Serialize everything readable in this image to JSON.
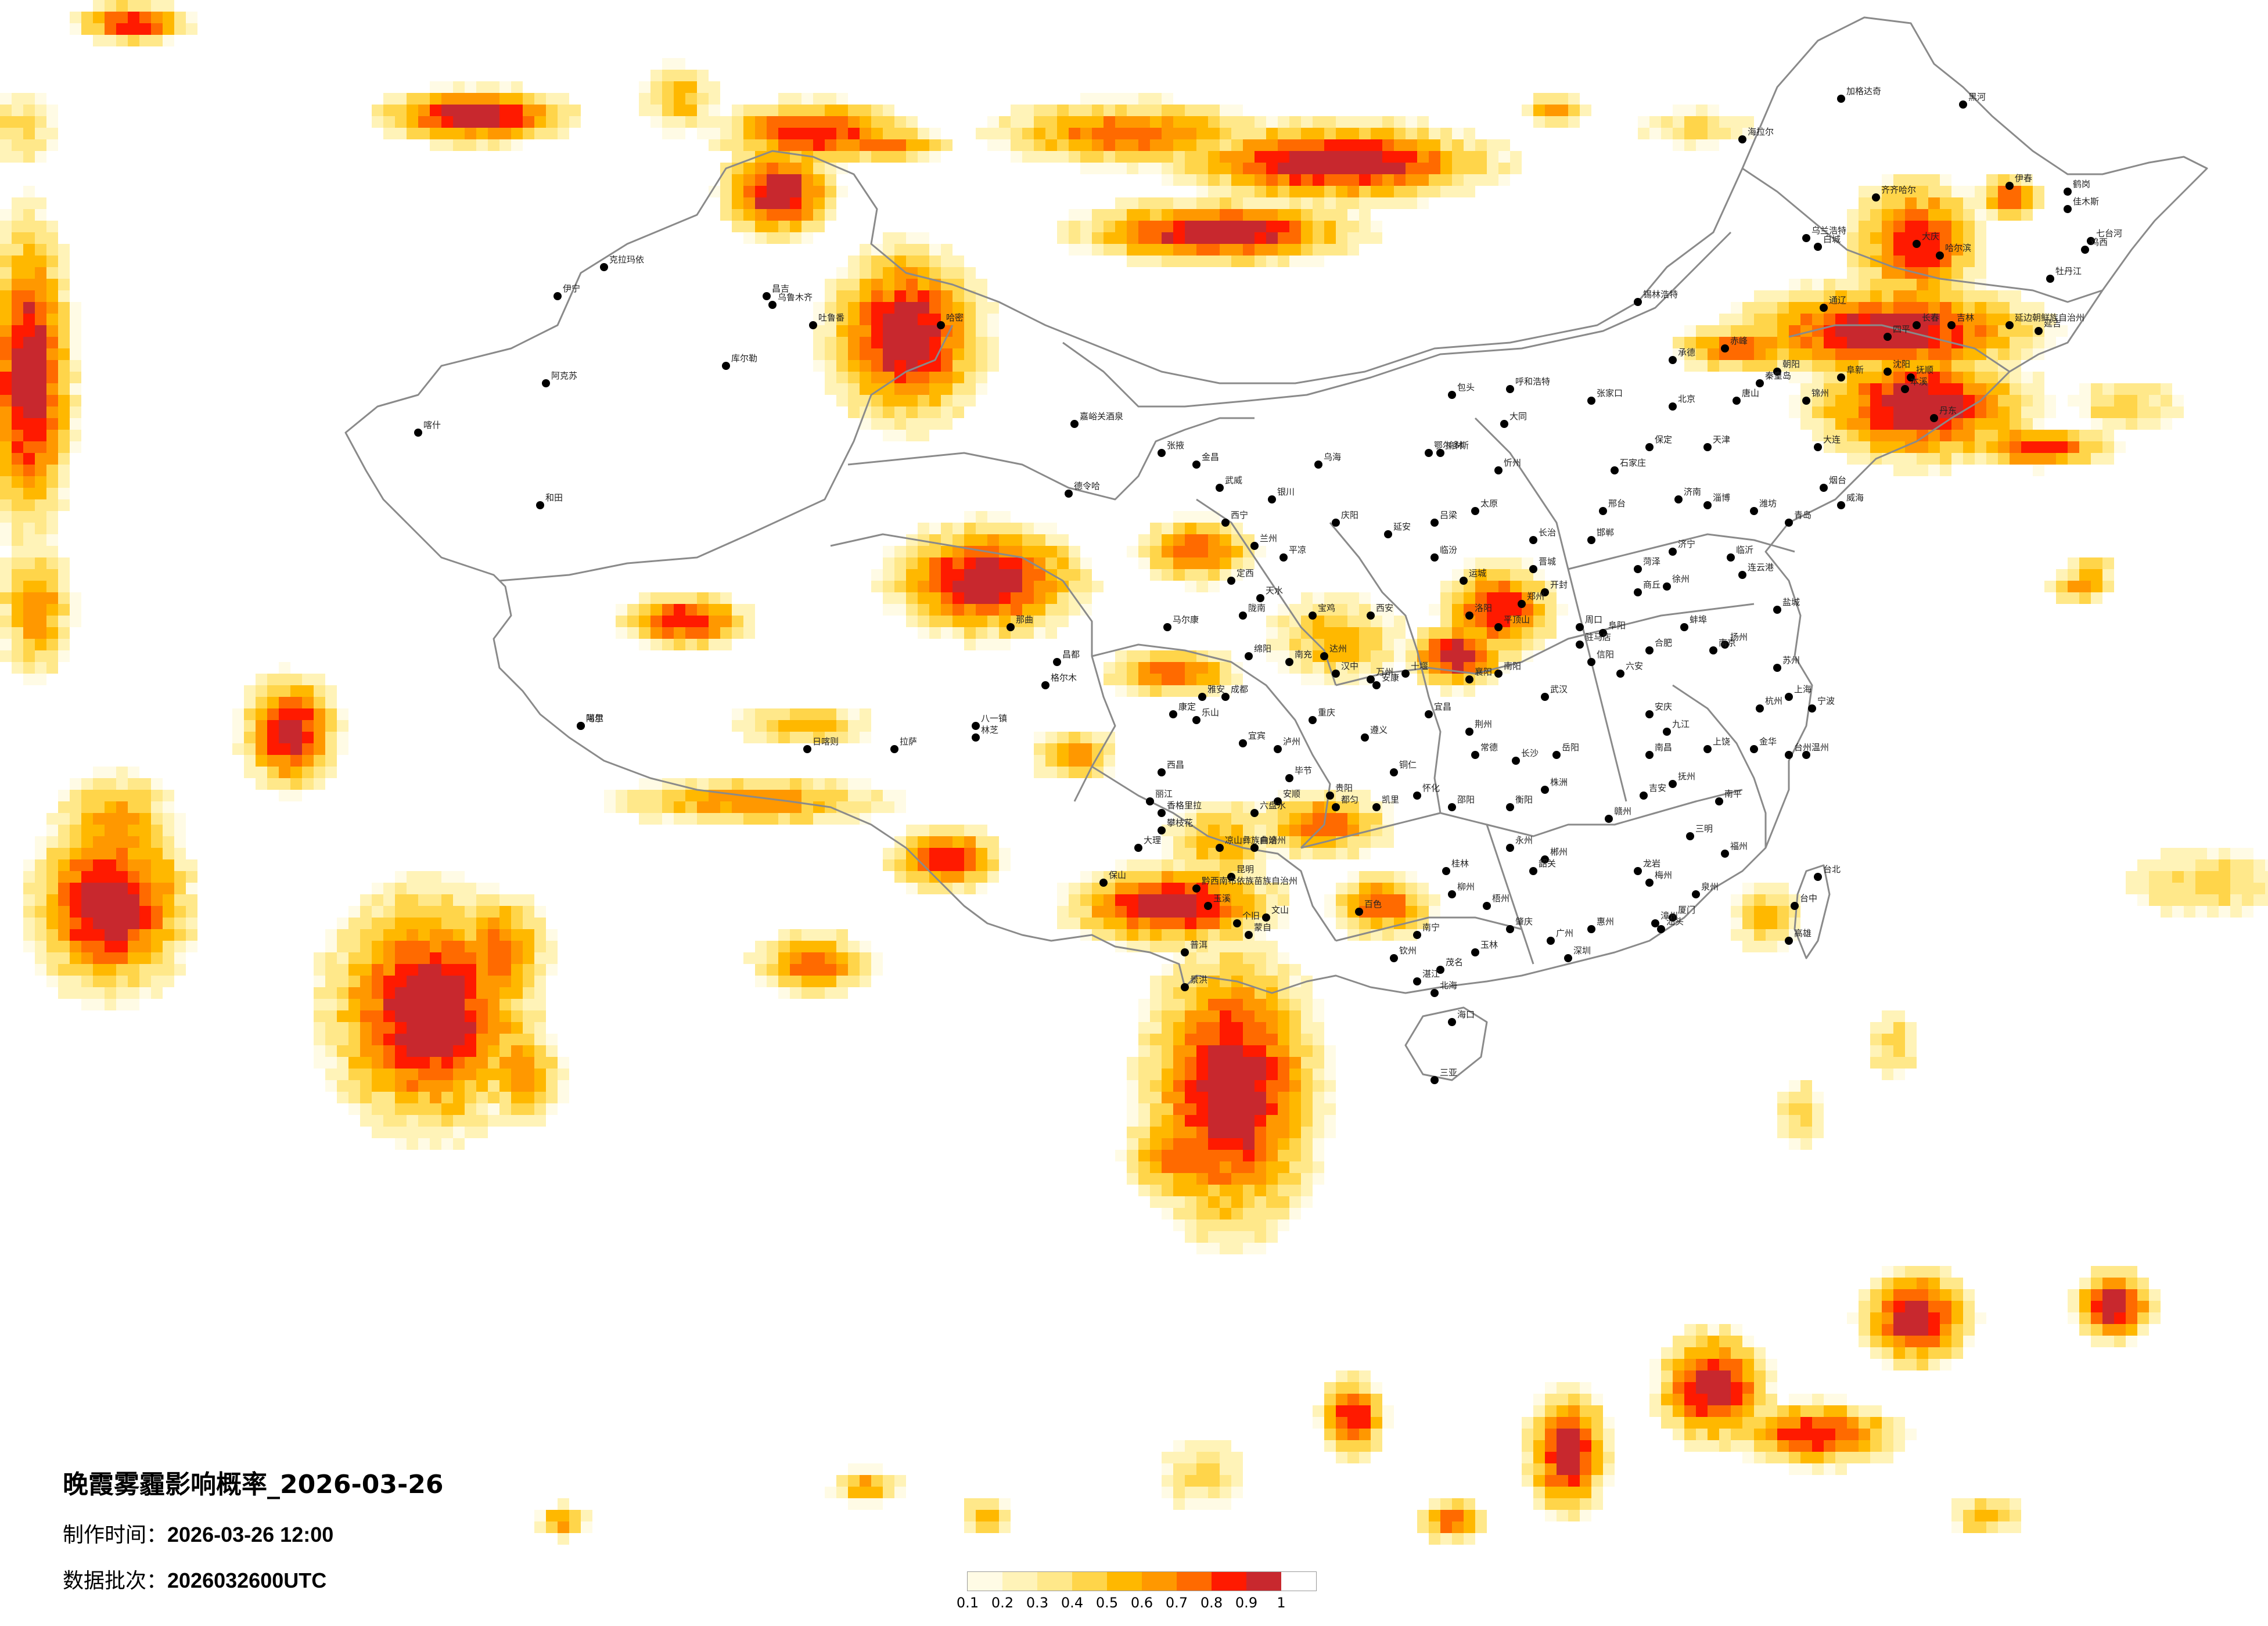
{
  "title": "晚霞雾霾影响概率_2026-03-26",
  "made_label": "制作时间：",
  "made_value": "2026-03-26 12:00",
  "batch_label": "数据批次：",
  "batch_value": "2026032600UTC",
  "legend": {
    "colors": [
      "#fffbe5",
      "#fff3b8",
      "#ffe88a",
      "#ffd54a",
      "#ffb800",
      "#ff9800",
      "#ff6a00",
      "#ff1a00",
      "#c8282e"
    ],
    "ticks": [
      "0.1",
      "0.2",
      "0.3",
      "0.4",
      "0.5",
      "0.6",
      "0.7",
      "0.8",
      "0.9",
      "1"
    ]
  },
  "cities": [
    "克拉玛依",
    "伊宁",
    "昌吉",
    "乌鲁木齐",
    "吐鲁番",
    "哈密",
    "库尔勒",
    "阿克苏",
    "喀什",
    "和田",
    "嘉峪关酒泉",
    "张掖",
    "金昌",
    "武威",
    "德令哈",
    "格尔木",
    "西宁",
    "兰州",
    "银川",
    "乌海",
    "包头",
    "呼和浩特",
    "鄂尔多斯",
    "锡林浩特",
    "海拉尔",
    "加格达奇",
    "黑河",
    "伊春",
    "齐齐哈尔",
    "大庆",
    "哈尔滨",
    "佳木斯",
    "鹤岗",
    "七台河",
    "鸡西",
    "牡丹江",
    "乌兰浩特",
    "白城",
    "通辽",
    "长春",
    "吉林",
    "延吉",
    "四平",
    "赤峰",
    "沈阳",
    "抚顺",
    "本溪",
    "丹东",
    "大连",
    "锦州",
    "阜新",
    "朝阳",
    "北京",
    "天津",
    "承德",
    "张家口",
    "唐山",
    "秦皇岛",
    "保定",
    "石家庄",
    "邢台",
    "邯郸",
    "太原",
    "忻州",
    "大同",
    "吕梁",
    "长治",
    "晋城",
    "运城",
    "临汾",
    "济南",
    "青岛",
    "烟台",
    "威海",
    "潍坊",
    "淄博",
    "临沂",
    "济宁",
    "菏泽",
    "郑州",
    "开封",
    "洛阳",
    "平顶山",
    "南阳",
    "信阳",
    "周口",
    "驻马店",
    "商丘",
    "西安",
    "宝鸡",
    "延安",
    "榆林",
    "汉中",
    "安康",
    "天水",
    "定西",
    "平凉",
    "庆阳",
    "陇南",
    "合肥",
    "蚌埠",
    "阜阳",
    "六安",
    "安庆",
    "南京",
    "徐州",
    "连云港",
    "盐城",
    "扬州",
    "苏州",
    "上海",
    "杭州",
    "宁波",
    "温州",
    "金华",
    "台州",
    "南昌",
    "九江",
    "赣州",
    "上饶",
    "吉安",
    "抚州",
    "武汉",
    "宜昌",
    "襄阳",
    "十堰",
    "荆州",
    "长沙",
    "岳阳",
    "常德",
    "衡阳",
    "株洲",
    "怀化",
    "邵阳",
    "郴州",
    "永州",
    "广州",
    "深圳",
    "汕头",
    "韶关",
    "梅州",
    "湛江",
    "茂名",
    "肇庆",
    "惠州",
    "南宁",
    "桂林",
    "柳州",
    "梧州",
    "百色",
    "钦州",
    "北海",
    "玉林",
    "海口",
    "三亚",
    "福州",
    "厦门",
    "泉州",
    "漳州",
    "三明",
    "南平",
    "龙岩",
    "台北",
    "台中",
    "高雄",
    "成都",
    "绵阳",
    "南充",
    "达州",
    "宜宾",
    "泸州",
    "乐山",
    "雅安",
    "西昌",
    "攀枝花",
    "康定",
    "马尔康",
    "重庆",
    "万州",
    "贵阳",
    "遵义",
    "毕节",
    "六盘水",
    "安顺",
    "都匀",
    "凯里",
    "铜仁",
    "昆明",
    "大理",
    "丽江",
    "保山",
    "曲靖",
    "玉溪",
    "蒙自",
    "个旧",
    "文山",
    "普洱",
    "景洪",
    "拉萨",
    "日喀则",
    "林芝",
    "昌都",
    "那曲",
    "阿里",
    "噶尔",
    "八一镇",
    "香格里拉",
    "黔西南布依族苗族自治州",
    "延边朝鲜族自治州",
    "凉山彝族自治州"
  ]
}
